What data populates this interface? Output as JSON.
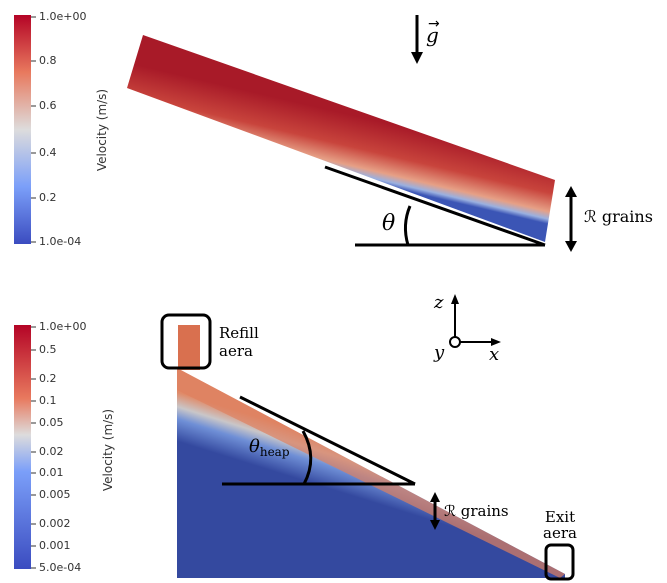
{
  "panels": [
    {
      "colorbar": {
        "label": "Velocity (m/s)",
        "ticks": [
          "1.0e+00",
          "0.8",
          "0.6",
          "0.4",
          "0.2",
          "1.0e-04"
        ]
      },
      "gravity_label": "g",
      "angle_label": "θ",
      "height_label": "ℛ grains"
    },
    {
      "colorbar": {
        "label": "Velocity (m/s)",
        "ticks": [
          "1.0e+00",
          "0.5",
          "0.2",
          "0.1",
          "0.05",
          "0.02",
          "0.01",
          "0.005",
          "0.002",
          "0.001",
          "5.0e-04"
        ]
      },
      "refill_label": [
        "Refill",
        "aera"
      ],
      "exit_label": [
        "Exit",
        "aera"
      ],
      "angle_label": "θ",
      "angle_subscript": "heap",
      "height_label": "ℛ grains",
      "axes": {
        "z": "z",
        "y": "y",
        "x": "x"
      }
    }
  ]
}
